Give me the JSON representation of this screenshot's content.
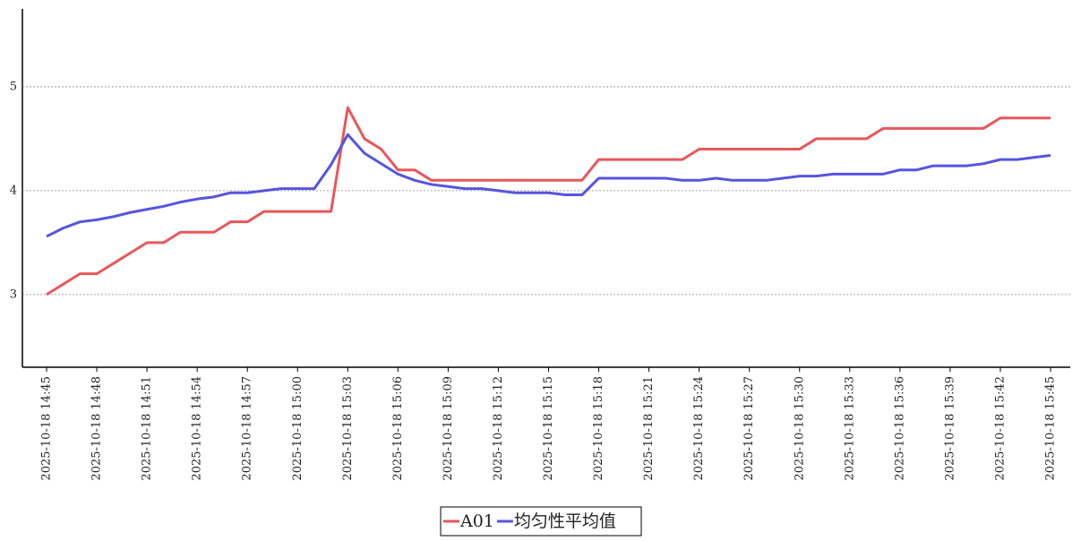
{
  "chart_data": {
    "type": "line",
    "categories": [
      "2025-10-18 14:45",
      null,
      null,
      "2025-10-18 14:48",
      null,
      null,
      "2025-10-18 14:51",
      null,
      null,
      "2025-10-18 14:54",
      null,
      null,
      "2025-10-18 14:57",
      null,
      null,
      "2025-10-18 15:00",
      null,
      null,
      "2025-10-18 15:03",
      null,
      null,
      "2025-10-18 15:06",
      null,
      null,
      "2025-10-18 15:09",
      null,
      null,
      "2025-10-18 15:12",
      null,
      null,
      "2025-10-18 15:15",
      null,
      null,
      "2025-10-18 15:18",
      null,
      null,
      "2025-10-18 15:21",
      null,
      null,
      "2025-10-18 15:24",
      null,
      null,
      "2025-10-18 15:27",
      null,
      null,
      "2025-10-18 15:30",
      null,
      null,
      "2025-10-18 15:33",
      null,
      null,
      "2025-10-18 15:36",
      null,
      null,
      "2025-10-18 15:39",
      null,
      null,
      "2025-10-18 15:42",
      null,
      null,
      "2025-10-18 15:45"
    ],
    "series": [
      {
        "name": "A01",
        "color": "#e8575a",
        "values": [
          3.0,
          3.1,
          3.2,
          3.2,
          3.3,
          3.4,
          3.5,
          3.5,
          3.6,
          3.6,
          3.6,
          3.7,
          3.7,
          3.8,
          3.8,
          3.8,
          3.8,
          3.8,
          4.8,
          4.5,
          4.4,
          4.2,
          4.2,
          4.1,
          4.1,
          4.1,
          4.1,
          4.1,
          4.1,
          4.1,
          4.1,
          4.1,
          4.1,
          4.3,
          4.3,
          4.3,
          4.3,
          4.3,
          4.3,
          4.4,
          4.4,
          4.4,
          4.4,
          4.4,
          4.4,
          4.4,
          4.5,
          4.5,
          4.5,
          4.5,
          4.6,
          4.6,
          4.6,
          4.6,
          4.6,
          4.6,
          4.6,
          4.7,
          4.7,
          4.7,
          4.7
        ]
      },
      {
        "name": "均匀性平均值",
        "color": "#5555e0",
        "values": [
          3.56,
          3.64,
          3.7,
          3.72,
          3.75,
          3.79,
          3.82,
          3.85,
          3.89,
          3.92,
          3.94,
          3.98,
          3.98,
          4.0,
          4.02,
          4.02,
          4.02,
          4.25,
          4.54,
          4.36,
          4.26,
          4.16,
          4.1,
          4.06,
          4.04,
          4.02,
          4.02,
          4.0,
          3.98,
          3.98,
          3.98,
          3.96,
          3.96,
          4.12,
          4.12,
          4.12,
          4.12,
          4.12,
          4.1,
          4.1,
          4.12,
          4.1,
          4.1,
          4.1,
          4.12,
          4.14,
          4.14,
          4.16,
          4.16,
          4.16,
          4.16,
          4.2,
          4.2,
          4.24,
          4.24,
          4.24,
          4.26,
          4.3,
          4.3,
          4.32,
          4.34
        ]
      }
    ],
    "ylim": [
      2.3,
      5.75
    ],
    "yticks": [
      3,
      4,
      5
    ],
    "grid": true
  }
}
